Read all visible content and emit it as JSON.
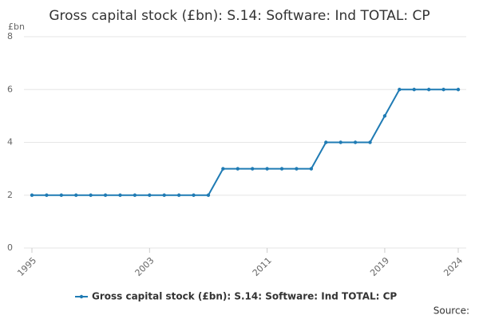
{
  "chart_data": {
    "type": "line",
    "title": "Gross capital stock (£bn): S.14: Software: Ind TOTAL: CP",
    "y_label": "£bn",
    "source": "Source:",
    "x": [
      1995,
      1996,
      1997,
      1998,
      1999,
      2000,
      2001,
      2002,
      2003,
      2004,
      2005,
      2006,
      2007,
      2008,
      2009,
      2010,
      2011,
      2012,
      2013,
      2014,
      2015,
      2016,
      2017,
      2018,
      2019,
      2020,
      2021,
      2022,
      2023,
      2024
    ],
    "series": [
      {
        "name": "Gross capital stock (£bn): S.14: Software: Ind TOTAL: CP",
        "color": "#1f7bb4",
        "values": [
          2,
          2,
          2,
          2,
          2,
          2,
          2,
          2,
          2,
          2,
          2,
          2,
          2,
          3,
          3,
          3,
          3,
          3,
          3,
          3,
          4,
          4,
          4,
          4,
          5,
          6,
          6,
          6,
          6,
          6
        ]
      }
    ],
    "xlim": [
      1995,
      2024
    ],
    "xticks": [
      1995,
      2003,
      2011,
      2019,
      2024
    ],
    "ylim": [
      0,
      8
    ],
    "yticks": [
      0,
      2,
      4,
      6,
      8
    ],
    "grid": true,
    "legend": "bottom"
  }
}
